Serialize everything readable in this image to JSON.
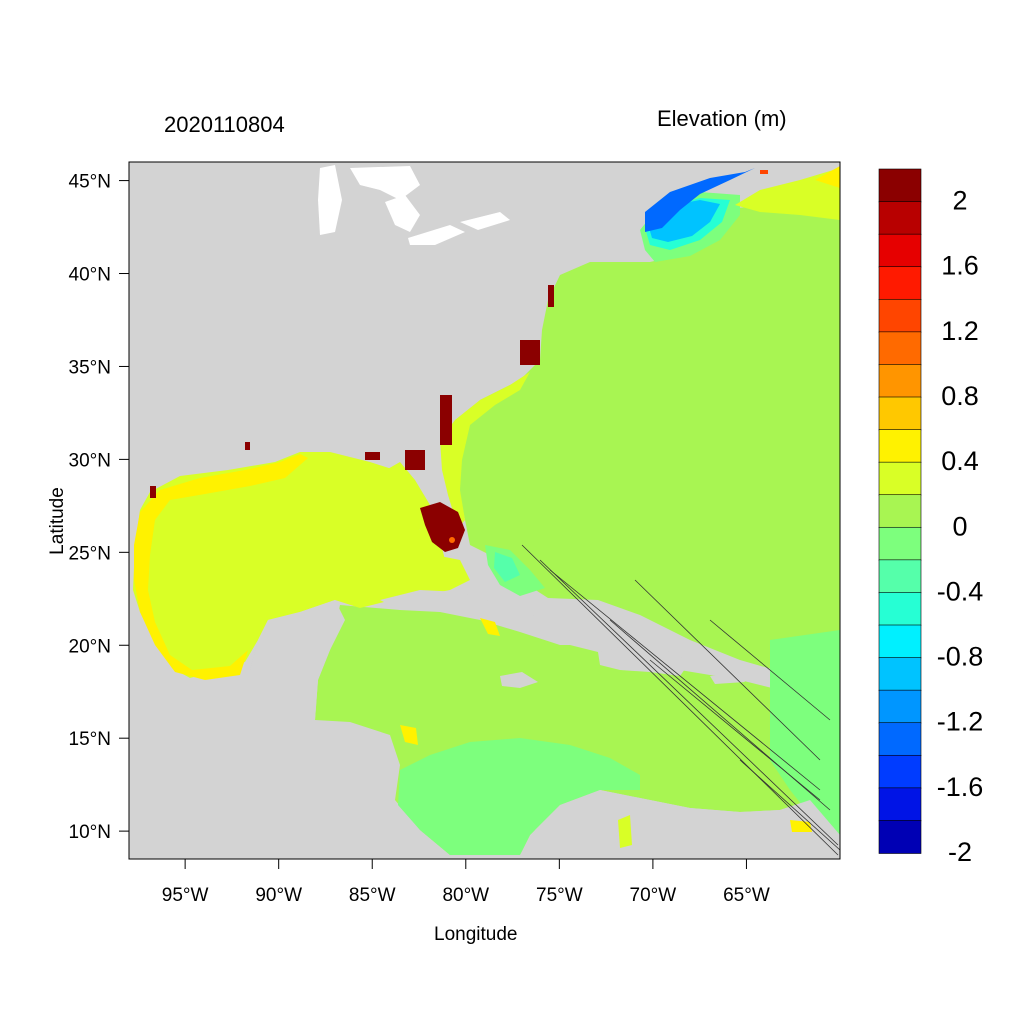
{
  "figure": {
    "date_label": "2020110804",
    "variable_title": "Elevation (m)",
    "xlabel": "Longitude",
    "ylabel": "Latitude"
  },
  "map": {
    "lon_range": [
      -98,
      -60
    ],
    "lat_range": [
      8.5,
      46
    ],
    "lon_ticks": [
      {
        "value": -95,
        "label": "95°W"
      },
      {
        "value": -90,
        "label": "90°W"
      },
      {
        "value": -85,
        "label": "85°W"
      },
      {
        "value": -80,
        "label": "80°W"
      },
      {
        "value": -75,
        "label": "75°W"
      },
      {
        "value": -70,
        "label": "70°W"
      },
      {
        "value": -65,
        "label": "65°W"
      }
    ],
    "lat_ticks": [
      {
        "value": 45,
        "label": "45°N"
      },
      {
        "value": 40,
        "label": "40°N"
      },
      {
        "value": 35,
        "label": "35°N"
      },
      {
        "value": 30,
        "label": "30°N"
      },
      {
        "value": 25,
        "label": "25°N"
      },
      {
        "value": 20,
        "label": "20°N"
      },
      {
        "value": 15,
        "label": "15°N"
      },
      {
        "value": 10,
        "label": "10°N"
      }
    ],
    "land_color": "#d3d3d3",
    "ocean_base_color": "#a8f552"
  },
  "colorbar": {
    "label_values": [
      "2",
      "1.6",
      "1.2",
      "0.8",
      "0.4",
      "0",
      "-0.4",
      "-0.8",
      "-1.2",
      "-1.6",
      "-2"
    ],
    "colors_top_to_bottom": [
      "#8b0000",
      "#b80000",
      "#e60000",
      "#ff1a00",
      "#ff4500",
      "#ff6a00",
      "#ff9500",
      "#ffc800",
      "#fff200",
      "#d9ff26",
      "#a8f552",
      "#7dff7d",
      "#55ffaa",
      "#26ffd4",
      "#00f0ff",
      "#00c3ff",
      "#0096ff",
      "#0069ff",
      "#003cff",
      "#0014e6",
      "#0000b4"
    ]
  }
}
